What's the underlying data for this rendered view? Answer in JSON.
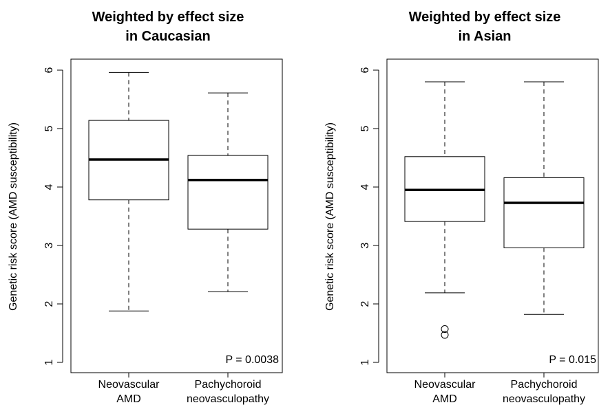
{
  "chart_data": [
    {
      "type": "box",
      "title_lines": [
        "Weighted by effect size",
        "in Caucasian"
      ],
      "ylabel": "Genetic risk score (AMD susceptibility)",
      "ylim": [
        1,
        6
      ],
      "yticks": [
        1,
        2,
        3,
        4,
        5,
        6
      ],
      "categories": [
        {
          "lines": [
            "Neovascular",
            "AMD"
          ]
        },
        {
          "lines": [
            "Pachychoroid",
            "neovasculopathy"
          ]
        }
      ],
      "boxes": [
        {
          "whisker_low": 1.88,
          "q1": 3.78,
          "median": 4.47,
          "q3": 5.14,
          "whisker_high": 5.96,
          "outliers": []
        },
        {
          "whisker_low": 2.21,
          "q1": 3.28,
          "median": 4.12,
          "q3": 4.54,
          "whisker_high": 5.61,
          "outliers": []
        }
      ],
      "annotation": "P = 0.0038"
    },
    {
      "type": "box",
      "title_lines": [
        "Weighted by effect size",
        "in Asian"
      ],
      "ylabel": "Genetic risk score (AMD susceptibility)",
      "ylim": [
        1,
        6
      ],
      "yticks": [
        1,
        2,
        3,
        4,
        5,
        6
      ],
      "categories": [
        {
          "lines": [
            "Neovascular",
            "AMD"
          ]
        },
        {
          "lines": [
            "Pachychoroid",
            "neovasculopathy"
          ]
        }
      ],
      "boxes": [
        {
          "whisker_low": 2.19,
          "q1": 3.41,
          "median": 3.95,
          "q3": 4.52,
          "whisker_high": 5.8,
          "outliers": [
            1.57,
            1.47
          ]
        },
        {
          "whisker_low": 1.82,
          "q1": 2.96,
          "median": 3.73,
          "q3": 4.16,
          "whisker_high": 5.8,
          "outliers": []
        }
      ],
      "annotation": "P = 0.015"
    }
  ]
}
